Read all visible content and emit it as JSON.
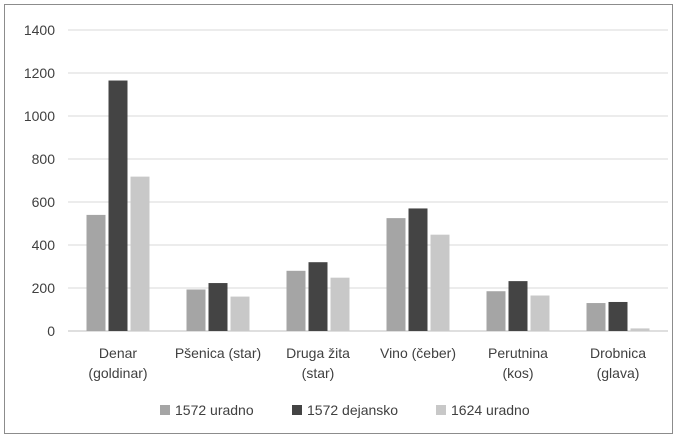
{
  "chart_data": {
    "type": "bar",
    "categories": [
      [
        "Denar",
        "(goldinar)"
      ],
      [
        "Pšenica (star)"
      ],
      [
        "Druga žita",
        "(star)"
      ],
      [
        "Vino (čeber)"
      ],
      [
        "Perutnina",
        "(kos)"
      ],
      [
        "Drobnica",
        "(glava)"
      ]
    ],
    "series": [
      {
        "name": "1572 uradno",
        "color": "#a5a5a5",
        "values": [
          540,
          193,
          280,
          525,
          185,
          130
        ]
      },
      {
        "name": "1572 dejansko",
        "color": "#444444",
        "values": [
          1165,
          223,
          320,
          570,
          232,
          135
        ]
      },
      {
        "name": "1624 uradno",
        "color": "#c8c8c8",
        "values": [
          718,
          160,
          248,
          448,
          165,
          12
        ]
      }
    ],
    "ylim": [
      0,
      1400
    ],
    "yticks": [
      "0",
      "200",
      "400",
      "600",
      "800",
      "1000",
      "1200",
      "1400"
    ],
    "grid": true,
    "legend_position": "bottom"
  }
}
